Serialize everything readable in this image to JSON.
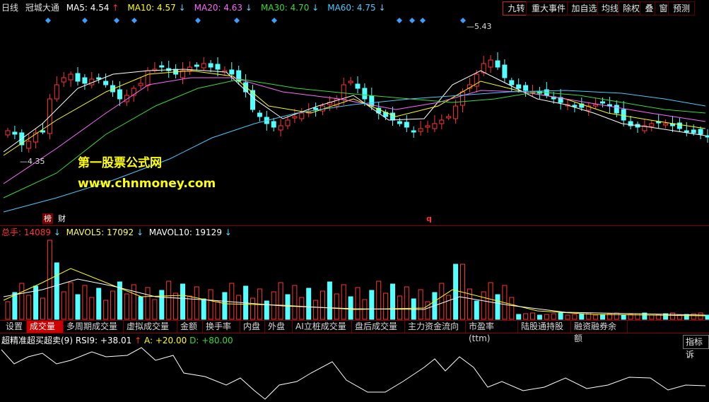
{
  "header": {
    "period": "日线",
    "stock_name": "冠城大通",
    "ma": [
      {
        "label": "MA5: ",
        "value": "4.54",
        "arrow": "↑",
        "color": "#ffffff",
        "dir": "up"
      },
      {
        "label": "MA10: ",
        "value": "4.57",
        "arrow": "↓",
        "color": "#ffff00",
        "dir": "down"
      },
      {
        "label": "MA20: ",
        "value": "4.63",
        "arrow": "↓",
        "color": "#ff66ff",
        "dir": "down"
      },
      {
        "label": "MA30: ",
        "value": "4.70",
        "arrow": "↓",
        "color": "#33dd33",
        "dir": "down"
      },
      {
        "label": "MA60: ",
        "value": "4.75",
        "arrow": "↓",
        "color": "#44ccff",
        "dir": "down"
      }
    ]
  },
  "toolbar": [
    "九转",
    "重大事件",
    "加自选",
    "均线",
    "除权",
    "叠",
    "窗",
    "预测"
  ],
  "price_chart": {
    "high_label": "5.43",
    "low_label": "4.35",
    "badge_bang": "榜",
    "badge_cai": "财",
    "badge_q": "q",
    "up_color": "#ff3333",
    "down_color": "#54ffff"
  },
  "watermark": {
    "line1": "第一股票公式网",
    "line2": "www.chnmoney.com"
  },
  "volume": {
    "total_label": "总手: ",
    "total_value": "14089",
    "total_arrow": "↓",
    "mavol5_label": "MAVOL5: ",
    "mavol5_value": "17092",
    "mavol5_arrow": "↓",
    "mavol10_label": "MAVOL10: ",
    "mavol10_value": "19129",
    "mavol10_arrow": "↓"
  },
  "tabs": [
    "设置",
    "成交量",
    "多周期成交量",
    "虚拟成交量",
    "金额",
    "换手率",
    "内盘",
    "外盘",
    "AI立桩成交量",
    "盘后成交量",
    "主力资金流向",
    "市盈率(ttm)",
    "陆股通持股",
    "融资融券余额"
  ],
  "active_tab": "成交量",
  "indicator": {
    "name": "超精准超买超卖(9)",
    "rsi_label": "RSI9: ",
    "rsi_value": "+38.01",
    "rsi_arrow": "↑",
    "a_label": "A: ",
    "a_value": "+20.00",
    "d_label": "D: ",
    "d_value": "+80.00",
    "right_button": "指标诉"
  }
}
